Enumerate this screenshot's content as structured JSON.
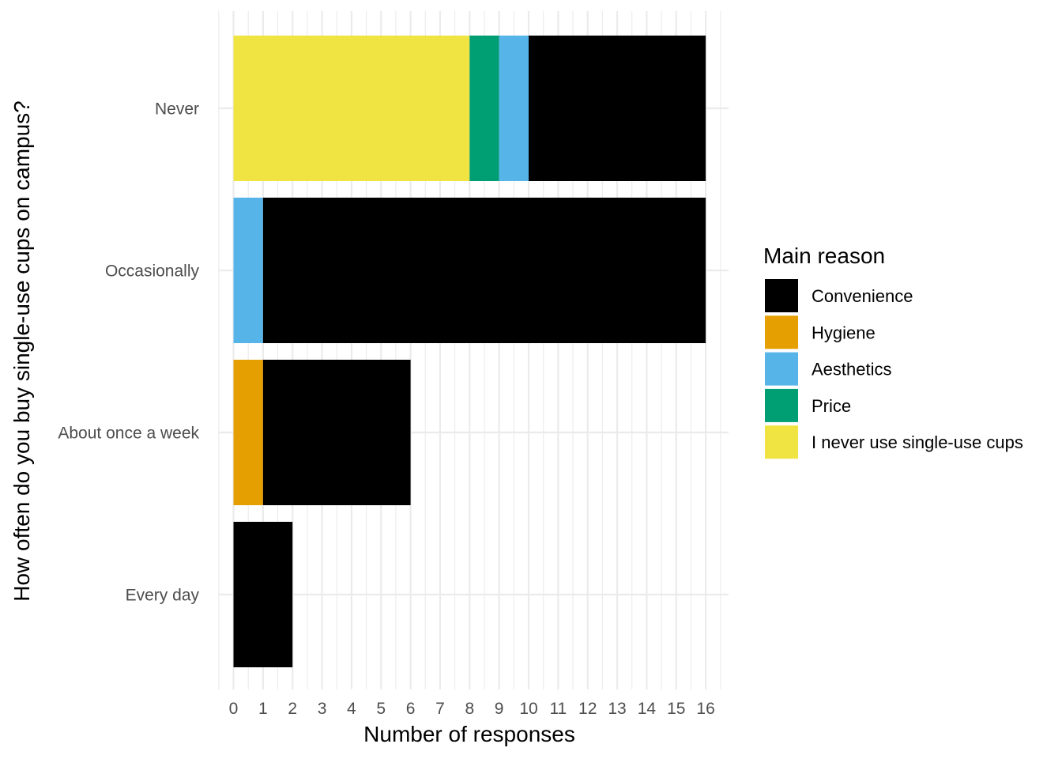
{
  "chart_data": {
    "type": "bar",
    "orientation": "horizontal",
    "stacked": true,
    "categories": [
      "Never",
      "Occasionally",
      "About once a week",
      "Every day"
    ],
    "series": [
      {
        "name": "Convenience",
        "color": "#000000",
        "values": [
          6,
          15,
          5,
          2
        ]
      },
      {
        "name": "Hygiene",
        "color": "#E69F00",
        "values": [
          0,
          0,
          1,
          0
        ]
      },
      {
        "name": "Aesthetics",
        "color": "#56B4E9",
        "values": [
          1,
          1,
          0,
          0
        ]
      },
      {
        "name": "Price",
        "color": "#009E73",
        "values": [
          1,
          0,
          0,
          0
        ]
      },
      {
        "name": "I never use single-use cups",
        "color": "#F0E442",
        "values": [
          8,
          0,
          0,
          0
        ]
      }
    ],
    "xlabel": "Number of responses",
    "ylabel": "How often do you buy single-use cups on campus?",
    "xlim": [
      0,
      16
    ],
    "xticks": [
      0,
      1,
      2,
      3,
      4,
      5,
      6,
      7,
      8,
      9,
      10,
      11,
      12,
      13,
      14,
      15,
      16
    ],
    "grid": true,
    "legend": {
      "title": "Main reason",
      "position": "right"
    }
  }
}
